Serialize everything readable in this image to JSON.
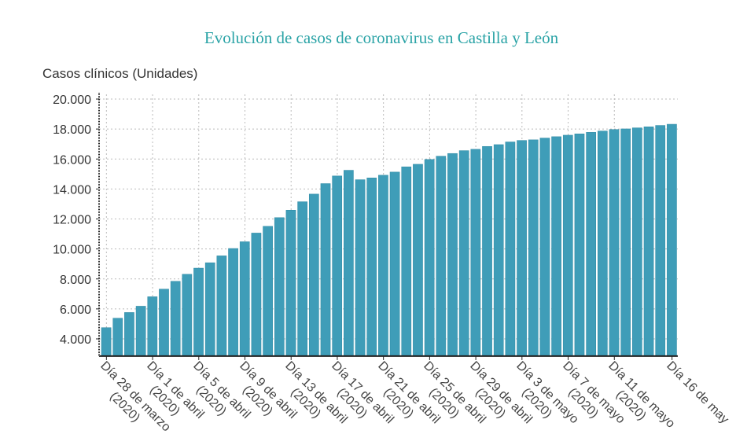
{
  "chart_data": {
    "type": "bar",
    "title": "Evolución de casos de coronavirus en Castilla y León",
    "ylabel": "Casos clínicos (Unidades)",
    "xlabel": "",
    "ylim": [
      2850,
      20300
    ],
    "yticks": [
      4000,
      6000,
      8000,
      10000,
      12000,
      14000,
      16000,
      18000,
      20000
    ],
    "ytick_labels": [
      "4.000",
      "6.000",
      "8.000",
      "10.000",
      "12.000",
      "14.000",
      "16.000",
      "18.000",
      "20.000"
    ],
    "grid": true,
    "bar_color": "#3f9db8",
    "title_color": "#2aa3a6",
    "categories": [
      "28 mar",
      "29 mar",
      "30 mar",
      "31 mar",
      "1 abr",
      "2 abr",
      "3 abr",
      "4 abr",
      "5 abr",
      "6 abr",
      "7 abr",
      "8 abr",
      "9 abr",
      "10 abr",
      "11 abr",
      "12 abr",
      "13 abr",
      "14 abr",
      "15 abr",
      "16 abr",
      "17 abr",
      "18 abr",
      "19 abr",
      "20 abr",
      "21 abr",
      "22 abr",
      "23 abr",
      "24 abr",
      "25 abr",
      "26 abr",
      "27 abr",
      "28 abr",
      "29 abr",
      "30 abr",
      "1 may",
      "2 may",
      "3 may",
      "4 may",
      "5 may",
      "6 may",
      "7 may",
      "8 may",
      "9 may",
      "10 may",
      "11 may",
      "12 may",
      "13 may",
      "14 may",
      "15 may",
      "16 may"
    ],
    "values": [
      4750,
      5380,
      5760,
      6180,
      6810,
      7320,
      7840,
      8310,
      8720,
      9080,
      9540,
      10030,
      10480,
      11060,
      11510,
      12090,
      12590,
      13150,
      13660,
      14360,
      14870,
      15250,
      14620,
      14740,
      14920,
      15130,
      15480,
      15650,
      15970,
      16190,
      16370,
      16560,
      16650,
      16840,
      16960,
      17140,
      17240,
      17280,
      17400,
      17490,
      17590,
      17680,
      17780,
      17870,
      17970,
      18010,
      18080,
      18150,
      18240,
      18320
    ],
    "xtick_labels": [
      {
        "index": 0,
        "line1": "Día 28 de marzo",
        "line2": "(2020)"
      },
      {
        "index": 4,
        "line1": "Día 1 de abril",
        "line2": "(2020)"
      },
      {
        "index": 8,
        "line1": "Día 5 de abril",
        "line2": "(2020)"
      },
      {
        "index": 12,
        "line1": "Día 9 de abril",
        "line2": "(2020)"
      },
      {
        "index": 16,
        "line1": "Día 13 de abril",
        "line2": "(2020)"
      },
      {
        "index": 20,
        "line1": "Día 17 de abril",
        "line2": "(2020)"
      },
      {
        "index": 24,
        "line1": "Día 21 de abril",
        "line2": "(2020)"
      },
      {
        "index": 28,
        "line1": "Día 25 de abril",
        "line2": "(2020)"
      },
      {
        "index": 32,
        "line1": "Día 29 de abril",
        "line2": "(2020)"
      },
      {
        "index": 36,
        "line1": "Día 3 de mayo",
        "line2": "(2020)"
      },
      {
        "index": 40,
        "line1": "Día 7 de mayo",
        "line2": "(2020)"
      },
      {
        "index": 44,
        "line1": "Día 11 de mayo",
        "line2": "(2020)"
      },
      {
        "index": 49,
        "line1": "Día 16 de may",
        "line2": ""
      }
    ]
  }
}
